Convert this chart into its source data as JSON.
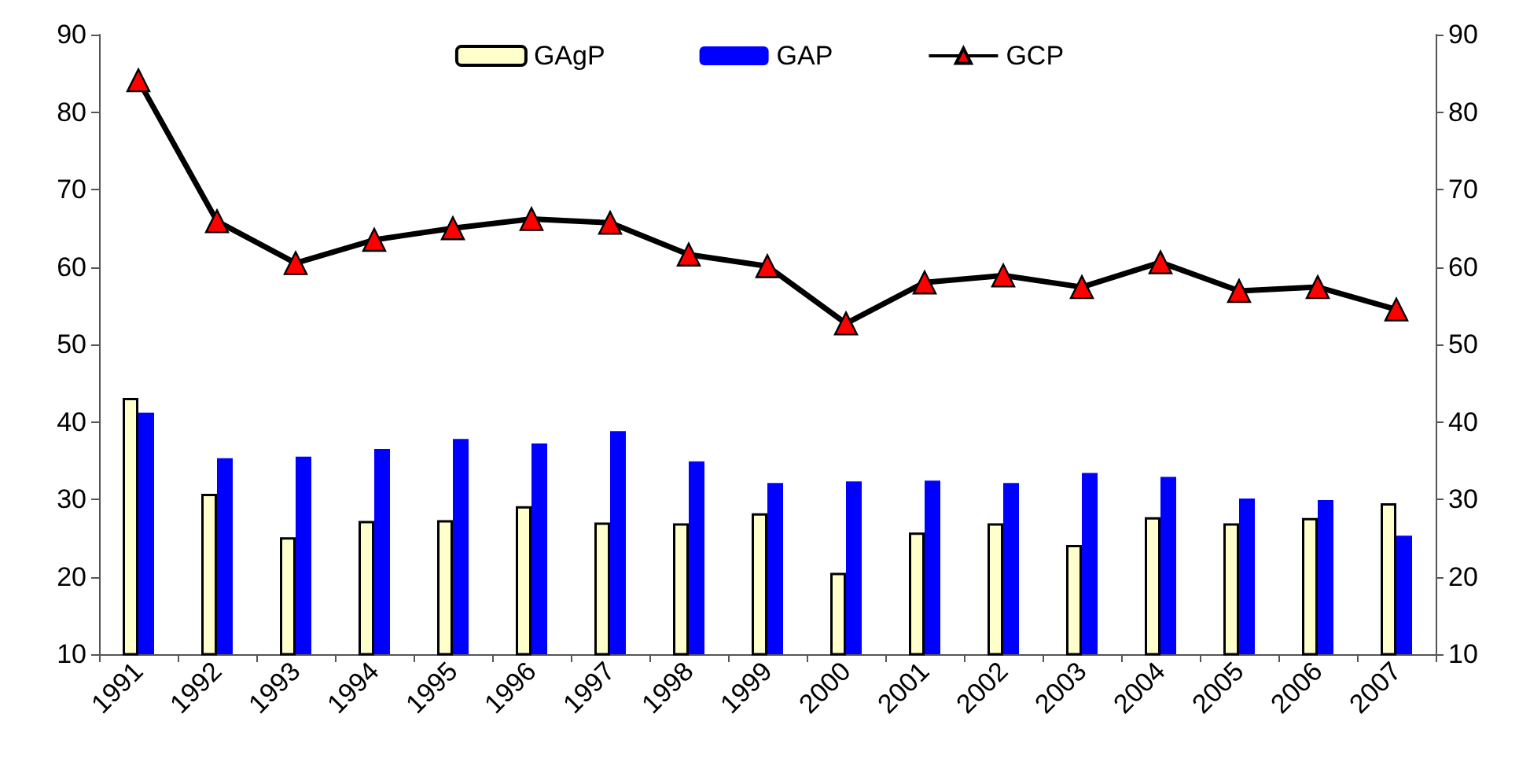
{
  "chart_data": {
    "type": "bar",
    "categories": [
      "1991",
      "1992",
      "1993",
      "1994",
      "1995",
      "1996",
      "1997",
      "1998",
      "1999",
      "2000",
      "2001",
      "2002",
      "2003",
      "2004",
      "2005",
      "2006",
      "2007"
    ],
    "series": [
      {
        "name": "GAgP",
        "color": "#ffffcc",
        "values": [
          43.1,
          30.7,
          25.1,
          27.2,
          27.3,
          29.1,
          27.0,
          26.9,
          28.2,
          20.5,
          25.7,
          26.9,
          24.1,
          27.7,
          26.9,
          27.6,
          29.5
        ]
      },
      {
        "name": "GAP",
        "color": "#0000ff",
        "values": [
          41.2,
          35.3,
          35.5,
          36.5,
          37.8,
          37.2,
          38.8,
          34.9,
          32.1,
          32.3,
          32.4,
          32.1,
          33.4,
          32.9,
          30.1,
          29.9,
          25.3
        ]
      },
      {
        "name": "GCP",
        "type": "line",
        "color": "#000000",
        "values": [
          84.1,
          65.9,
          60.5,
          63.5,
          65.0,
          66.2,
          65.7,
          61.6,
          60.1,
          52.7,
          58.0,
          58.9,
          57.4,
          60.6,
          56.9,
          57.4,
          54.5
        ]
      }
    ],
    "ylim": [
      10,
      90
    ],
    "yticks": [
      10,
      20,
      30,
      40,
      50,
      60,
      70,
      80,
      90
    ],
    "y2lim": [
      10,
      90
    ],
    "y2ticks": [
      10,
      20,
      30,
      40,
      50,
      60,
      70,
      80,
      90
    ],
    "legend": "top",
    "grid": false,
    "marker": "triangle",
    "line_style": "solid"
  }
}
